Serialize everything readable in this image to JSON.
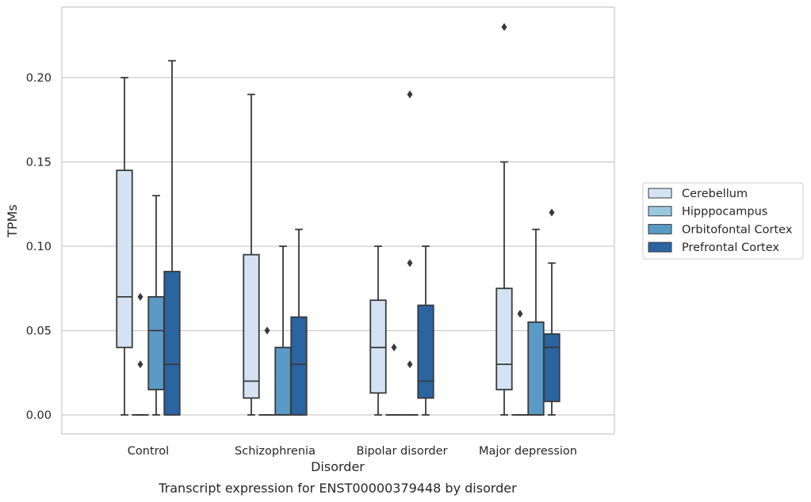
{
  "chart_data": {
    "type": "box",
    "xlabel": "Disorder",
    "ylabel": "TPMs",
    "caption": "Transcript expression for ENST00000379448 by disorder",
    "ylim": [
      -0.011,
      0.241
    ],
    "yticks": [
      "0.00",
      "0.05",
      "0.10",
      "0.15",
      "0.20"
    ],
    "ytick_values": [
      0.0,
      0.05,
      0.1,
      0.15,
      0.2
    ],
    "grid": "horizontal",
    "legend_position": "right",
    "categories": [
      "Control",
      "Schizophrenia",
      "Bipolar disorder",
      "Major depression"
    ],
    "series": [
      {
        "name": "Cerebellum",
        "color": "#d3e3f3",
        "boxes": [
          {
            "whislo": 0.0,
            "q1": 0.04,
            "med": 0.07,
            "q3": 0.145,
            "whishi": 0.2,
            "fliers": []
          },
          {
            "whislo": 0.0,
            "q1": 0.01,
            "med": 0.02,
            "q3": 0.095,
            "whishi": 0.19,
            "fliers": []
          },
          {
            "whislo": 0.0,
            "q1": 0.013,
            "med": 0.04,
            "q3": 0.068,
            "whishi": 0.1,
            "fliers": []
          },
          {
            "whislo": 0.0,
            "q1": 0.015,
            "med": 0.03,
            "q3": 0.075,
            "whishi": 0.15,
            "fliers": [
              0.23
            ]
          }
        ]
      },
      {
        "name": "Hipppocampus",
        "color": "#9ac8e0",
        "boxes": [
          {
            "whislo": 0.0,
            "q1": 0.0,
            "med": 0.0,
            "q3": 0.0,
            "whishi": 0.0,
            "fliers": [
              0.07,
              0.03
            ]
          },
          {
            "whislo": 0.0,
            "q1": 0.0,
            "med": 0.0,
            "q3": 0.0,
            "whishi": 0.0,
            "fliers": [
              0.05
            ]
          },
          {
            "whislo": 0.0,
            "q1": 0.0,
            "med": 0.0,
            "q3": 0.0,
            "whishi": 0.0,
            "fliers": [
              0.04
            ]
          },
          {
            "whislo": 0.0,
            "q1": 0.0,
            "med": 0.0,
            "q3": 0.0,
            "whishi": 0.0,
            "fliers": [
              0.06
            ]
          }
        ]
      },
      {
        "name": "Orbitofontal Cortex",
        "color": "#5a9ac6",
        "boxes": [
          {
            "whislo": 0.0,
            "q1": 0.015,
            "med": 0.05,
            "q3": 0.07,
            "whishi": 0.13,
            "fliers": []
          },
          {
            "whislo": 0.0,
            "q1": 0.0,
            "med": 0.0,
            "q3": 0.04,
            "whishi": 0.1,
            "fliers": []
          },
          {
            "whislo": 0.0,
            "q1": 0.0,
            "med": 0.0,
            "q3": 0.0,
            "whishi": 0.0,
            "fliers": [
              0.19,
              0.09,
              0.03
            ]
          },
          {
            "whislo": 0.0,
            "q1": 0.0,
            "med": 0.0,
            "q3": 0.055,
            "whishi": 0.11,
            "fliers": []
          }
        ]
      },
      {
        "name": "Prefrontal Cortex",
        "color": "#2a64a1",
        "boxes": [
          {
            "whislo": 0.0,
            "q1": 0.0,
            "med": 0.03,
            "q3": 0.085,
            "whishi": 0.21,
            "fliers": []
          },
          {
            "whislo": 0.0,
            "q1": 0.0,
            "med": 0.03,
            "q3": 0.058,
            "whishi": 0.11,
            "fliers": []
          },
          {
            "whislo": 0.0,
            "q1": 0.01,
            "med": 0.02,
            "q3": 0.065,
            "whishi": 0.1,
            "fliers": []
          },
          {
            "whislo": 0.0,
            "q1": 0.008,
            "med": 0.04,
            "q3": 0.048,
            "whishi": 0.09,
            "fliers": [
              0.12
            ]
          }
        ]
      }
    ]
  }
}
